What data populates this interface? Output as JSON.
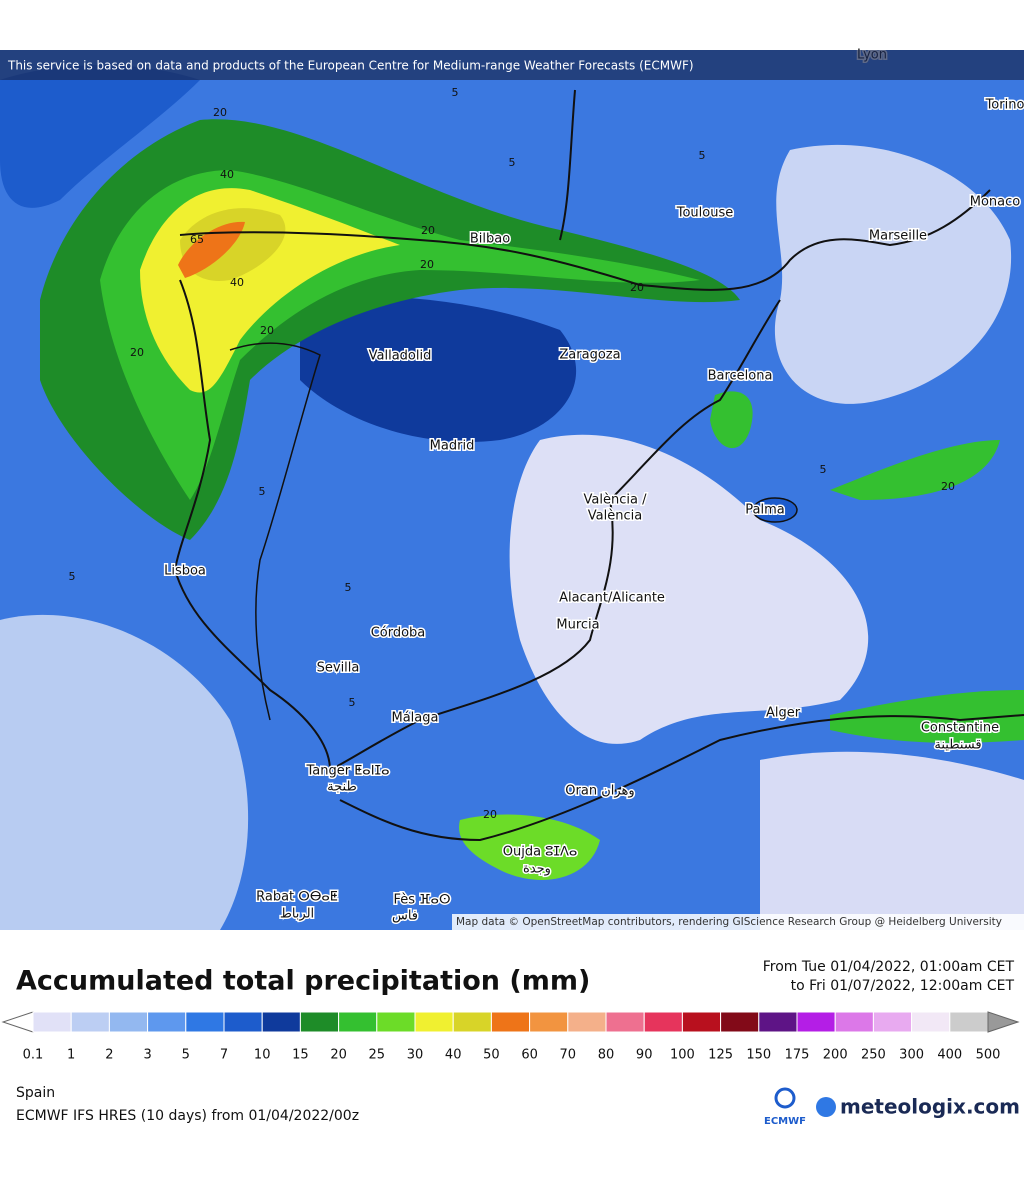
{
  "header": {
    "credit": "This service is based on data and products of the European Centre for Medium-range Weather Forecasts (ECMWF)"
  },
  "map": {
    "cities": [
      "Lyon",
      "Torino",
      "Toulouse",
      "Monaco",
      "Marseille",
      "Bilbao",
      "Valladolid",
      "Zaragoza",
      "Barcelona",
      "Madrid",
      "València /",
      "València",
      "Palma",
      "Lisboa",
      "Alacant/Alicante",
      "Murcia",
      "Córdoba",
      "Sevilla",
      "Málaga",
      "Alger",
      "Constantine",
      "قسنطينة",
      "Tanger ⵟⴰⵏⵊⴰ",
      "طنجة",
      "Oran وهران",
      "Oujda ⵓⵊⴷⴰ",
      "وجدة",
      "Rabat ⵔⴱⴰⵟ",
      "الرباط",
      "Fès ⴼⴰⵙ",
      "فاس"
    ],
    "contour_labels": [
      "20",
      "40",
      "65",
      "40",
      "20",
      "20",
      "20",
      "20",
      "20",
      "5",
      "5",
      "5",
      "5",
      "5",
      "5",
      "20",
      "5",
      "20",
      "5"
    ],
    "attribution": "Map data © OpenStreetMap contributors, rendering GIScience Research Group @ Heidelberg University"
  },
  "legend": {
    "title": "Accumulated total precipitation (mm)",
    "from": "From Tue 01/04/2022, 01:00am CET",
    "to": "to Fri 01/07/2022, 12:00am CET",
    "colors": [
      "#e1e1f7",
      "#bccef3",
      "#93b8f0",
      "#5e98ee",
      "#2f78e4",
      "#1d5ccc",
      "#0f3a9c",
      "#1e8c28",
      "#34c030",
      "#6cdc28",
      "#f0f030",
      "#d8d428",
      "#ee7418",
      "#f29440",
      "#f4b08a",
      "#ee7090",
      "#e6345c",
      "#b8101e",
      "#820a18",
      "#5e1486",
      "#b41ee6",
      "#dc78e8",
      "#e8aaf0",
      "#f2e8f6",
      "#cccccc"
    ],
    "ticks": [
      "0.1",
      "1",
      "2",
      "3",
      "5",
      "7",
      "10",
      "15",
      "20",
      "25",
      "30",
      "40",
      "50",
      "60",
      "70",
      "80",
      "90",
      "100",
      "125",
      "150",
      "175",
      "200",
      "250",
      "300",
      "400",
      "500"
    ]
  },
  "footer": {
    "region": "Spain",
    "model": "ECMWF IFS HRES (10 days) from 01/04/2022/00z",
    "ecmwf": "ECMWF",
    "brand": "meteologix.com"
  }
}
